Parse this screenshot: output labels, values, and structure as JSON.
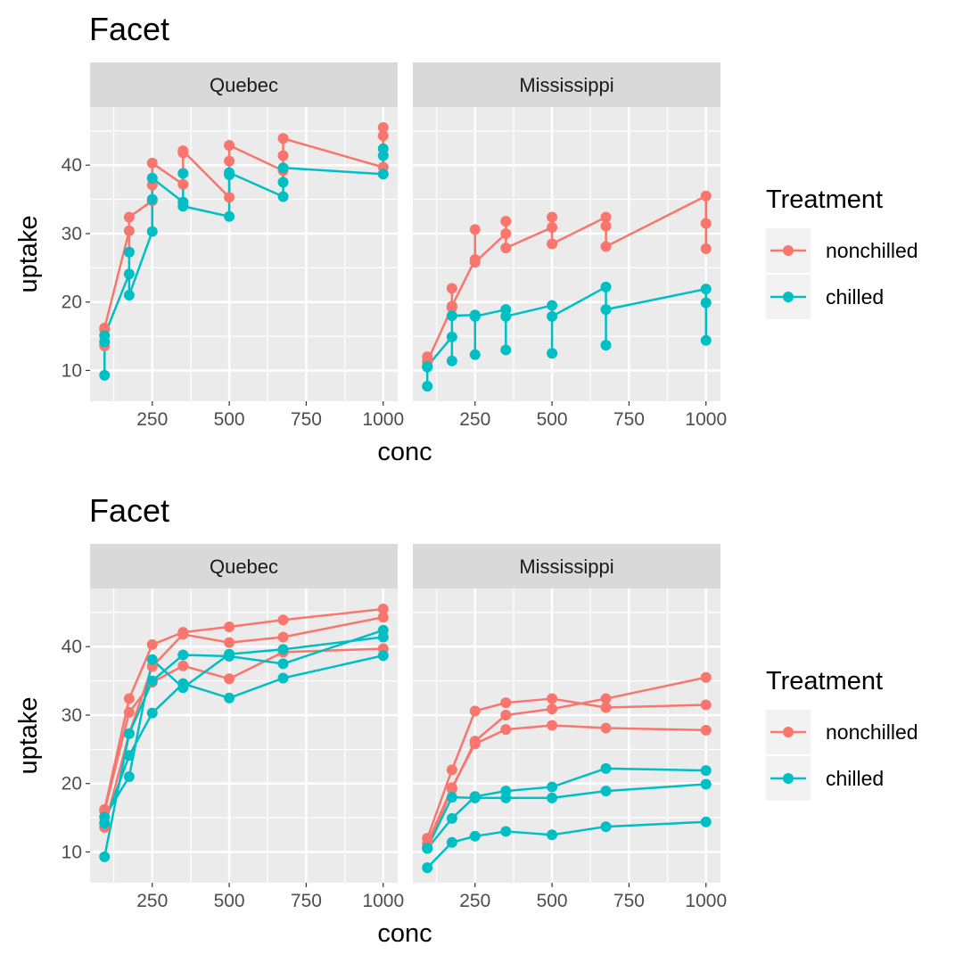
{
  "chart_data": [
    {
      "type": "line",
      "title": "Facet",
      "xlabel": "conc",
      "ylabel": "uptake",
      "x_ticks": [
        250,
        500,
        750,
        1000
      ],
      "y_ticks": [
        10,
        20,
        30,
        40
      ],
      "xlim": [
        48,
        1047
      ],
      "ylim": [
        5.5,
        48.5
      ],
      "grid": true,
      "legend_position": "right",
      "legend": {
        "title": "Treatment",
        "entries": [
          {
            "name": "nonchilled",
            "color": "#F8766D"
          },
          {
            "name": "chilled",
            "color": "#00BFC4"
          }
        ]
      },
      "connection": "by-x-order",
      "x": [
        95,
        175,
        250,
        350,
        500,
        675,
        1000
      ],
      "facets": [
        {
          "label": "Quebec",
          "series": [
            {
              "group": "nonchilled",
              "plant": "Qn1",
              "values": [
                16.0,
                30.4,
                34.8,
                37.2,
                35.3,
                39.2,
                39.7
              ]
            },
            {
              "group": "nonchilled",
              "plant": "Qn2",
              "values": [
                13.6,
                27.3,
                37.1,
                41.8,
                40.6,
                41.4,
                44.3
              ]
            },
            {
              "group": "nonchilled",
              "plant": "Qn3",
              "values": [
                16.2,
                32.4,
                40.3,
                42.1,
                42.9,
                43.9,
                45.5
              ]
            },
            {
              "group": "chilled",
              "plant": "Qc1",
              "values": [
                14.2,
                24.1,
                30.3,
                34.6,
                32.5,
                35.4,
                38.7
              ]
            },
            {
              "group": "chilled",
              "plant": "Qc2",
              "values": [
                9.3,
                27.3,
                35.0,
                38.8,
                38.6,
                37.5,
                42.4
              ]
            },
            {
              "group": "chilled",
              "plant": "Qc3",
              "values": [
                15.1,
                21.0,
                38.1,
                34.0,
                38.9,
                39.6,
                41.4
              ]
            }
          ]
        },
        {
          "label": "Mississippi",
          "series": [
            {
              "group": "nonchilled",
              "plant": "Mn1",
              "values": [
                10.6,
                19.2,
                26.2,
                30.0,
                30.9,
                32.4,
                35.5
              ]
            },
            {
              "group": "nonchilled",
              "plant": "Mn2",
              "values": [
                12.0,
                22.0,
                30.6,
                31.8,
                32.4,
                31.1,
                31.5
              ]
            },
            {
              "group": "nonchilled",
              "plant": "Mn3",
              "values": [
                11.3,
                19.4,
                25.8,
                27.9,
                28.5,
                28.1,
                27.8
              ]
            },
            {
              "group": "chilled",
              "plant": "Mc1",
              "values": [
                10.5,
                14.9,
                18.1,
                18.9,
                19.5,
                22.2,
                21.9
              ]
            },
            {
              "group": "chilled",
              "plant": "Mc2",
              "values": [
                7.7,
                11.4,
                12.3,
                13.0,
                12.5,
                13.7,
                14.4
              ]
            },
            {
              "group": "chilled",
              "plant": "Mc3",
              "values": [
                10.6,
                18.0,
                17.9,
                17.9,
                17.9,
                18.9,
                19.9
              ]
            }
          ]
        }
      ]
    },
    {
      "type": "line",
      "title": "Facet",
      "xlabel": "conc",
      "ylabel": "uptake",
      "x_ticks": [
        250,
        500,
        750,
        1000
      ],
      "y_ticks": [
        10,
        20,
        30,
        40
      ],
      "xlim": [
        48,
        1047
      ],
      "ylim": [
        5.5,
        48.5
      ],
      "grid": true,
      "legend_position": "right",
      "legend": {
        "title": "Treatment",
        "entries": [
          {
            "name": "nonchilled",
            "color": "#F8766D"
          },
          {
            "name": "chilled",
            "color": "#00BFC4"
          }
        ]
      },
      "connection": "by-plant",
      "x": [
        95,
        175,
        250,
        350,
        500,
        675,
        1000
      ],
      "facets": [
        {
          "label": "Quebec",
          "series": [
            {
              "group": "nonchilled",
              "plant": "Qn1",
              "values": [
                16.0,
                30.4,
                34.8,
                37.2,
                35.3,
                39.2,
                39.7
              ]
            },
            {
              "group": "nonchilled",
              "plant": "Qn2",
              "values": [
                13.6,
                27.3,
                37.1,
                41.8,
                40.6,
                41.4,
                44.3
              ]
            },
            {
              "group": "nonchilled",
              "plant": "Qn3",
              "values": [
                16.2,
                32.4,
                40.3,
                42.1,
                42.9,
                43.9,
                45.5
              ]
            },
            {
              "group": "chilled",
              "plant": "Qc1",
              "values": [
                14.2,
                24.1,
                30.3,
                34.6,
                32.5,
                35.4,
                38.7
              ]
            },
            {
              "group": "chilled",
              "plant": "Qc2",
              "values": [
                9.3,
                27.3,
                35.0,
                38.8,
                38.6,
                37.5,
                42.4
              ]
            },
            {
              "group": "chilled",
              "plant": "Qc3",
              "values": [
                15.1,
                21.0,
                38.1,
                34.0,
                38.9,
                39.6,
                41.4
              ]
            }
          ]
        },
        {
          "label": "Mississippi",
          "series": [
            {
              "group": "nonchilled",
              "plant": "Mn1",
              "values": [
                10.6,
                19.2,
                26.2,
                30.0,
                30.9,
                32.4,
                35.5
              ]
            },
            {
              "group": "nonchilled",
              "plant": "Mn2",
              "values": [
                12.0,
                22.0,
                30.6,
                31.8,
                32.4,
                31.1,
                31.5
              ]
            },
            {
              "group": "nonchilled",
              "plant": "Mn3",
              "values": [
                11.3,
                19.4,
                25.8,
                27.9,
                28.5,
                28.1,
                27.8
              ]
            },
            {
              "group": "chilled",
              "plant": "Mc1",
              "values": [
                10.5,
                14.9,
                18.1,
                18.9,
                19.5,
                22.2,
                21.9
              ]
            },
            {
              "group": "chilled",
              "plant": "Mc2",
              "values": [
                7.7,
                11.4,
                12.3,
                13.0,
                12.5,
                13.7,
                14.4
              ]
            },
            {
              "group": "chilled",
              "plant": "Mc3",
              "values": [
                10.6,
                18.0,
                17.9,
                17.9,
                17.9,
                18.9,
                19.9
              ]
            }
          ]
        }
      ]
    }
  ]
}
